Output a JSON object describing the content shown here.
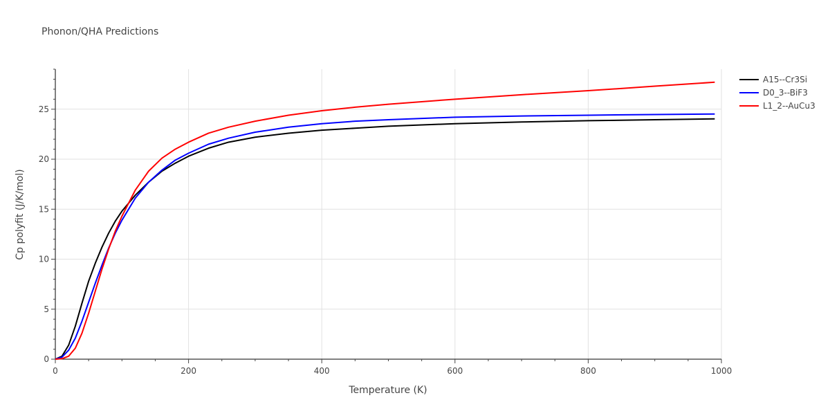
{
  "chart_data": {
    "type": "line",
    "title": "Phonon/QHA Predictions",
    "xlabel": "Temperature (K)",
    "ylabel": "Cp polyfit (J/K/mol)",
    "xlim": [
      0,
      1000
    ],
    "ylim": [
      0,
      29
    ],
    "xticks": [
      0,
      200,
      400,
      600,
      800,
      1000
    ],
    "yticks": [
      0,
      5,
      10,
      15,
      20,
      25
    ],
    "grid": true,
    "legend_position": "top-right",
    "series": [
      {
        "name": "A15--Cr3Si",
        "color": "#000000",
        "x": [
          0,
          10,
          20,
          30,
          40,
          50,
          60,
          70,
          80,
          90,
          100,
          120,
          140,
          160,
          180,
          200,
          230,
          260,
          300,
          350,
          400,
          450,
          500,
          600,
          700,
          800,
          900,
          990
        ],
        "y": [
          0,
          0.3,
          1.4,
          3.3,
          5.6,
          7.8,
          9.6,
          11.2,
          12.6,
          13.8,
          14.8,
          16.4,
          17.7,
          18.8,
          19.6,
          20.3,
          21.1,
          21.7,
          22.2,
          22.6,
          22.9,
          23.1,
          23.3,
          23.55,
          23.72,
          23.85,
          23.95,
          24.03
        ]
      },
      {
        "name": "D0_3--BiF3",
        "color": "#0000ff",
        "x": [
          0,
          10,
          20,
          30,
          40,
          50,
          60,
          70,
          80,
          90,
          100,
          120,
          140,
          160,
          180,
          200,
          230,
          260,
          300,
          350,
          400,
          450,
          500,
          600,
          700,
          800,
          900,
          990
        ],
        "y": [
          0,
          0.2,
          0.9,
          2.1,
          3.8,
          5.7,
          7.6,
          9.4,
          11.1,
          12.6,
          13.9,
          16.1,
          17.7,
          18.9,
          19.9,
          20.6,
          21.5,
          22.1,
          22.7,
          23.2,
          23.55,
          23.8,
          23.95,
          24.2,
          24.32,
          24.4,
          24.47,
          24.52
        ]
      },
      {
        "name": "L1_2--AuCu3",
        "color": "#ff0000",
        "x": [
          0,
          10,
          20,
          30,
          40,
          50,
          60,
          70,
          80,
          90,
          100,
          120,
          140,
          160,
          180,
          200,
          230,
          260,
          300,
          350,
          400,
          450,
          500,
          600,
          700,
          800,
          900,
          990
        ],
        "y": [
          0,
          0.05,
          0.3,
          1.1,
          2.6,
          4.6,
          6.8,
          9.0,
          11.0,
          12.8,
          14.3,
          16.9,
          18.8,
          20.1,
          21.0,
          21.7,
          22.6,
          23.2,
          23.8,
          24.4,
          24.85,
          25.2,
          25.5,
          26.0,
          26.45,
          26.85,
          27.3,
          27.7
        ]
      }
    ]
  }
}
